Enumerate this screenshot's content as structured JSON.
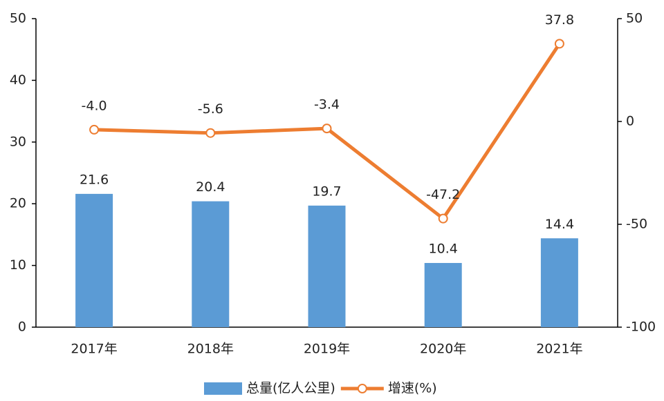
{
  "chart_data": {
    "type": "bar_line",
    "categories": [
      "2017年",
      "2018年",
      "2019年",
      "2020年",
      "2021年"
    ],
    "series": [
      {
        "name": "总量(亿人公里)",
        "color": "#5b9bd5",
        "type": "bar",
        "values": [
          21.6,
          20.4,
          19.7,
          10.4,
          14.4
        ]
      },
      {
        "name": "增速(%)",
        "color": "#ed7d31",
        "type": "line",
        "axis": "y2",
        "values": [
          -4.0,
          -5.6,
          -3.4,
          -47.2,
          37.8
        ],
        "value_labels": [
          "-4.0",
          "-5.6",
          "-3.4",
          "-47.2",
          "37.8"
        ]
      }
    ],
    "ylim": [
      0,
      50
    ],
    "yticks": [
      0,
      10,
      20,
      30,
      40,
      50
    ],
    "y2lim": [
      -100,
      50
    ],
    "y2ticks": [
      -100,
      -50,
      0,
      50
    ],
    "legend": "bottom"
  }
}
